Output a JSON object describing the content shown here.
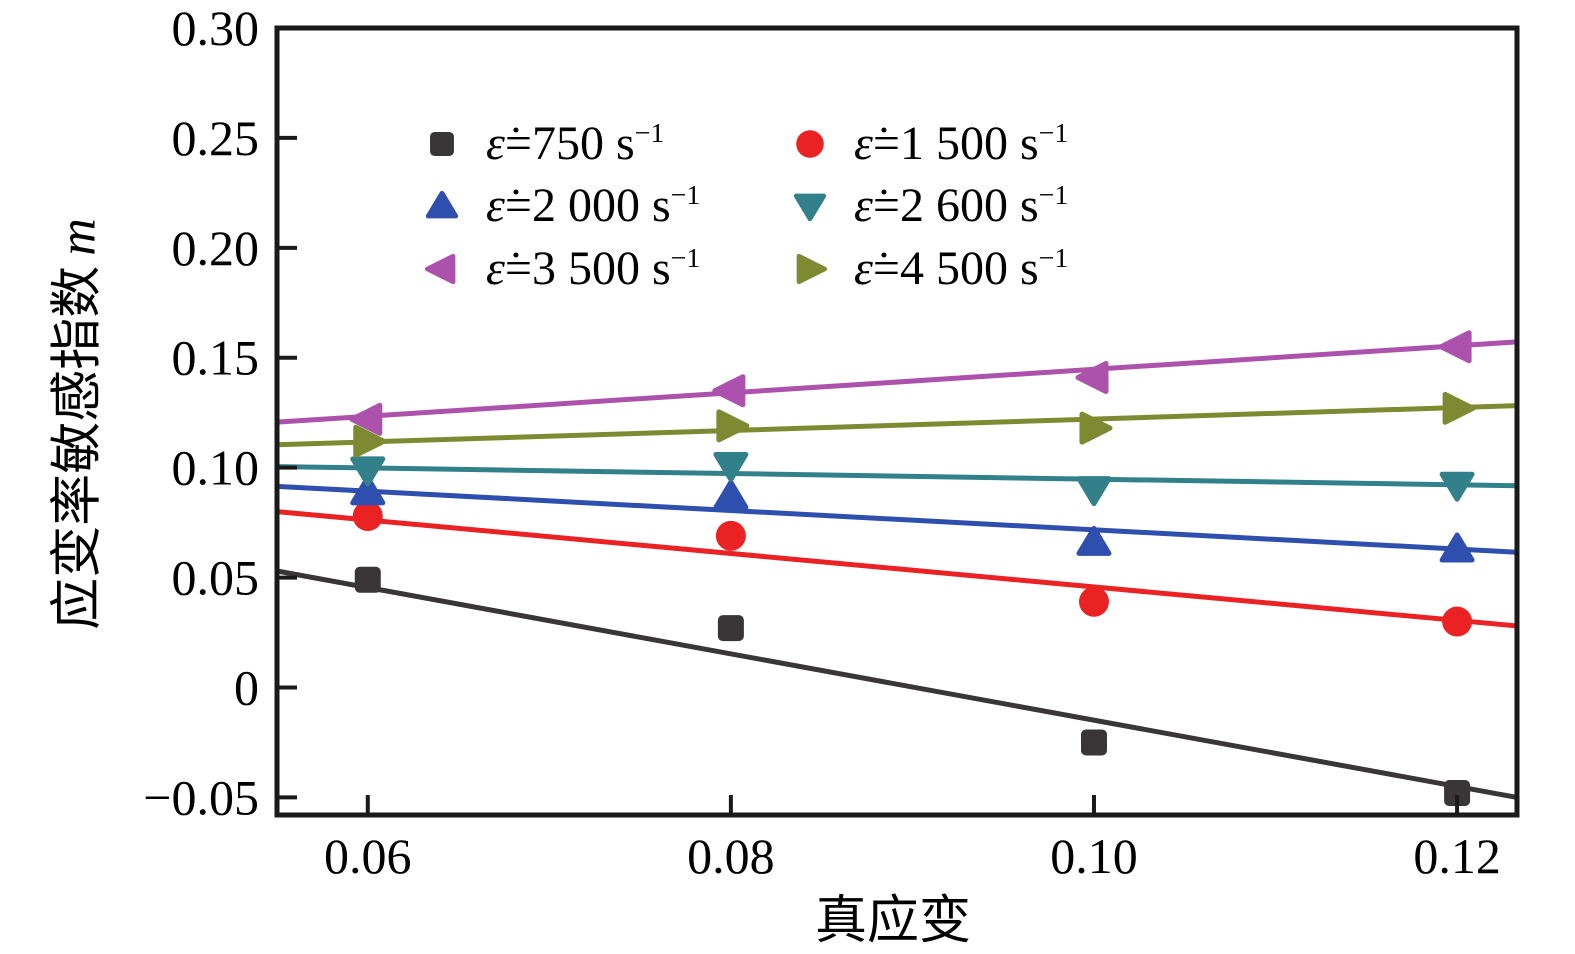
{
  "figure": {
    "background": "#ffffff",
    "frame_color": "#1a1a1a"
  },
  "chart_data": {
    "type": "scatter",
    "title": "",
    "xlabel": "真应变",
    "ylabel_cn": "应变率敏感指数",
    "ylabel_var": "m",
    "grid": false,
    "legend_position": "top-center-inside",
    "xlim": [
      0.055,
      0.1233
    ],
    "ylim": [
      -0.058,
      0.3
    ],
    "x": [
      0.06,
      0.08,
      0.1,
      0.12
    ],
    "xticks": [
      {
        "v": 0.06,
        "label": "0.06"
      },
      {
        "v": 0.08,
        "label": "0.08"
      },
      {
        "v": 0.1,
        "label": "0.10"
      },
      {
        "v": 0.12,
        "label": "0.12"
      }
    ],
    "yticks": [
      {
        "v": 0.3,
        "label": "0.30"
      },
      {
        "v": 0.25,
        "label": "0.25"
      },
      {
        "v": 0.2,
        "label": "0.20"
      },
      {
        "v": 0.15,
        "label": "0.15"
      },
      {
        "v": 0.1,
        "label": "0.10"
      },
      {
        "v": 0.05,
        "label": "0.05"
      },
      {
        "v": 0.0,
        "label": "0"
      },
      {
        "v": -0.05,
        "label": "−0.05"
      }
    ],
    "series": [
      {
        "id": "750",
        "marker": "square",
        "color": "#3a3536",
        "values": [
          0.049,
          0.027,
          -0.025,
          -0.048
        ],
        "fit": [
          [
            0.055,
            0.053
          ],
          [
            0.1233,
            -0.05
          ]
        ],
        "label": {
          "eps": "ε̇",
          "body": "=750 s",
          "sup": "−1"
        }
      },
      {
        "id": "1500",
        "marker": "circle",
        "color": "#ea2224",
        "values": [
          0.078,
          0.069,
          0.039,
          0.03
        ],
        "fit": [
          [
            0.055,
            0.08
          ],
          [
            0.1233,
            0.028
          ]
        ],
        "label": {
          "eps": "ε̇",
          "body": "=1 500 s",
          "sup": "−1"
        }
      },
      {
        "id": "2000",
        "marker": "triangle-up",
        "color": "#2f4fae",
        "values": [
          0.089,
          0.087,
          0.066,
          0.063
        ],
        "fit": [
          [
            0.055,
            0.0915
          ],
          [
            0.1233,
            0.0615
          ]
        ],
        "label": {
          "eps": "ε̇",
          "body": "=2 000 s",
          "sup": "−1"
        }
      },
      {
        "id": "2600",
        "marker": "triangle-down",
        "color": "#31808a",
        "values": [
          0.099,
          0.101,
          0.09,
          0.092
        ],
        "fit": [
          [
            0.055,
            0.1005
          ],
          [
            0.1233,
            0.0918
          ]
        ],
        "label": {
          "eps": "ε̇",
          "body": "=2 600 s",
          "sup": "−1"
        }
      },
      {
        "id": "3500",
        "marker": "triangle-left",
        "color": "#ac52ac",
        "values": [
          0.122,
          0.135,
          0.141,
          0.155
        ],
        "fit": [
          [
            0.055,
            0.1207
          ],
          [
            0.1233,
            0.1572
          ]
        ],
        "label": {
          "eps": "ε̇",
          "body": "=3 500 s",
          "sup": "−1"
        }
      },
      {
        "id": "4500",
        "marker": "triangle-right",
        "color": "#7d8a32",
        "values": [
          0.112,
          0.119,
          0.118,
          0.127
        ],
        "fit": [
          [
            0.055,
            0.1104
          ],
          [
            0.1233,
            0.1282
          ]
        ],
        "label": {
          "eps": "ε̇",
          "body": "=4 500 s",
          "sup": "−1"
        }
      }
    ]
  }
}
